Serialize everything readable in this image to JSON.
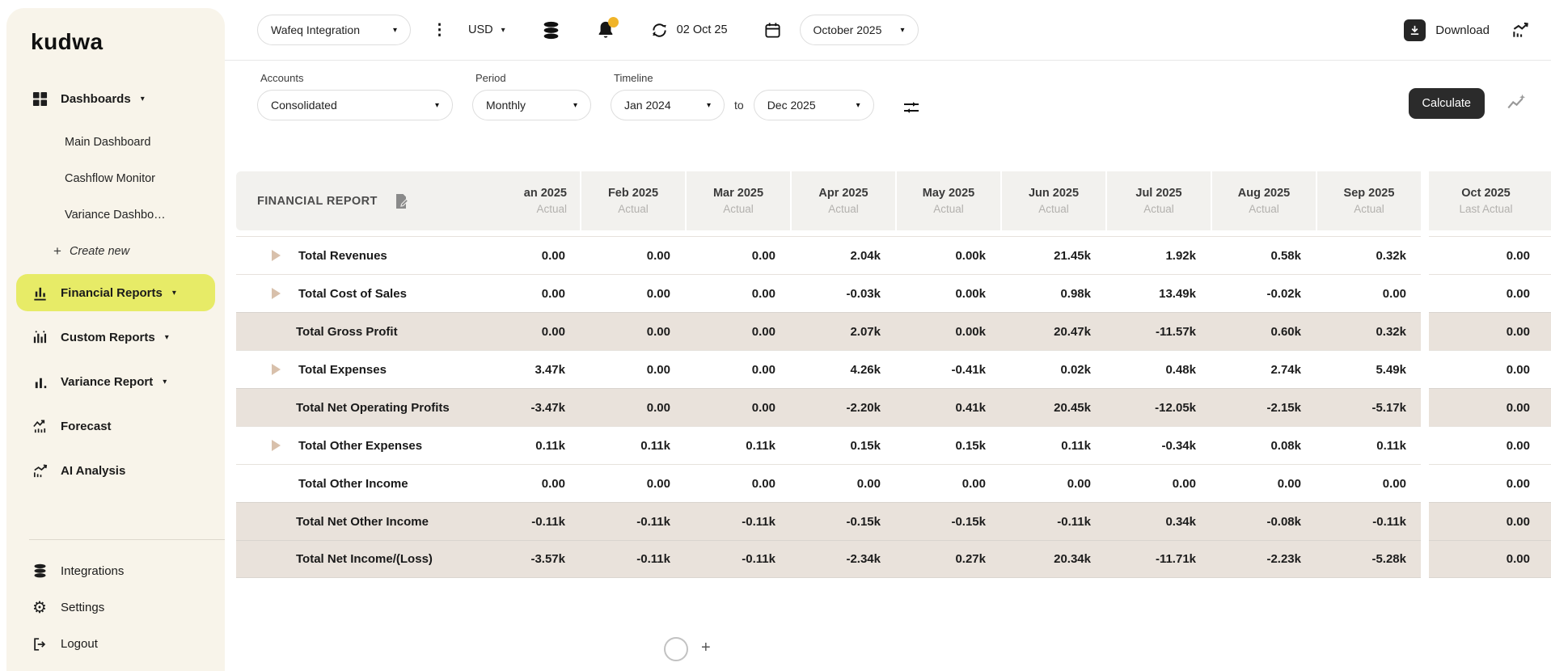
{
  "brand": {
    "logo_text": "kudwa"
  },
  "colors": {
    "sidebar_bg": "#f8f4ea",
    "active_item_highlight": "#e7eb67",
    "notification_dot": "#f0b429",
    "calculate_button_bg": "#2b2b2b",
    "table_header_bg": "#f2f1ee",
    "highlight_row_bg": "#e9e2db",
    "expand_arrow": "#d8c0ab"
  },
  "sidebar": {
    "dashboards_label": "Dashboards",
    "dashboards_sub": [
      "Main Dashboard",
      "Cashflow Monitor",
      "Variance Dashbo…"
    ],
    "create_new_label": "Create new",
    "financial_reports_label": "Financial Reports",
    "custom_reports_label": "Custom Reports",
    "variance_report_label": "Variance Report",
    "forecast_label": "Forecast",
    "ai_analysis_label": "AI Analysis",
    "integrations_label": "Integrations",
    "settings_label": "Settings",
    "logout_label": "Logout"
  },
  "topbar": {
    "integration_selector": "Wafeq Integration",
    "currency_selector": "USD",
    "sync_date": "02 Oct 25",
    "month_selector": "October 2025",
    "download_label": "Download"
  },
  "filters": {
    "accounts_label": "Accounts",
    "accounts_value": "Consolidated",
    "period_label": "Period",
    "period_value": "Monthly",
    "timeline_label": "Timeline",
    "timeline_from": "Jan 2024",
    "timeline_separator": "to",
    "timeline_to": "Dec 2025",
    "calculate_label": "Calculate"
  },
  "report": {
    "title": "FINANCIAL REPORT",
    "columns": [
      {
        "label": "an 2025",
        "sub": "Actual"
      },
      {
        "label": "Feb 2025",
        "sub": "Actual"
      },
      {
        "label": "Mar 2025",
        "sub": "Actual"
      },
      {
        "label": "Apr 2025",
        "sub": "Actual"
      },
      {
        "label": "May 2025",
        "sub": "Actual"
      },
      {
        "label": "Jun 2025",
        "sub": "Actual"
      },
      {
        "label": "Jul 2025",
        "sub": "Actual"
      },
      {
        "label": "Aug 2025",
        "sub": "Actual"
      },
      {
        "label": "Sep 2025",
        "sub": "Actual"
      },
      {
        "label": "Oct 2025",
        "sub": "Last Actual"
      }
    ],
    "rows": [
      {
        "name": "Total Revenues",
        "expandable": true,
        "highlight": false,
        "values": [
          "0.00",
          "0.00",
          "0.00",
          "2.04k",
          "0.00k",
          "21.45k",
          "1.92k",
          "0.58k",
          "0.32k",
          "0.00"
        ]
      },
      {
        "name": "Total Cost of Sales",
        "expandable": true,
        "highlight": false,
        "values": [
          "0.00",
          "0.00",
          "0.00",
          "-0.03k",
          "0.00k",
          "0.98k",
          "13.49k",
          "-0.02k",
          "0.00",
          "0.00"
        ]
      },
      {
        "name": "Total Gross Profit",
        "expandable": false,
        "highlight": true,
        "values": [
          "0.00",
          "0.00",
          "0.00",
          "2.07k",
          "0.00k",
          "20.47k",
          "-11.57k",
          "0.60k",
          "0.32k",
          "0.00"
        ]
      },
      {
        "name": "Total Expenses",
        "expandable": true,
        "highlight": false,
        "values": [
          "3.47k",
          "0.00",
          "0.00",
          "4.26k",
          "-0.41k",
          "0.02k",
          "0.48k",
          "2.74k",
          "5.49k",
          "0.00"
        ]
      },
      {
        "name": "Total Net Operating Profits",
        "expandable": false,
        "highlight": true,
        "values": [
          "-3.47k",
          "0.00",
          "0.00",
          "-2.20k",
          "0.41k",
          "20.45k",
          "-12.05k",
          "-2.15k",
          "-5.17k",
          "0.00"
        ]
      },
      {
        "name": "Total Other Expenses",
        "expandable": true,
        "highlight": false,
        "values": [
          "0.11k",
          "0.11k",
          "0.11k",
          "0.15k",
          "0.15k",
          "0.11k",
          "-0.34k",
          "0.08k",
          "0.11k",
          "0.00"
        ]
      },
      {
        "name": "Total Other Income",
        "expandable": false,
        "highlight": false,
        "values": [
          "0.00",
          "0.00",
          "0.00",
          "0.00",
          "0.00",
          "0.00",
          "0.00",
          "0.00",
          "0.00",
          "0.00"
        ]
      },
      {
        "name": "Total Net Other Income",
        "expandable": false,
        "highlight": true,
        "values": [
          "-0.11k",
          "-0.11k",
          "-0.11k",
          "-0.15k",
          "-0.15k",
          "-0.11k",
          "0.34k",
          "-0.08k",
          "-0.11k",
          "0.00"
        ]
      },
      {
        "name": "Total Net Income/(Loss)",
        "expandable": false,
        "highlight": true,
        "values": [
          "-3.57k",
          "-0.11k",
          "-0.11k",
          "-2.34k",
          "0.27k",
          "20.34k",
          "-11.71k",
          "-2.23k",
          "-5.28k",
          "0.00"
        ]
      }
    ]
  }
}
